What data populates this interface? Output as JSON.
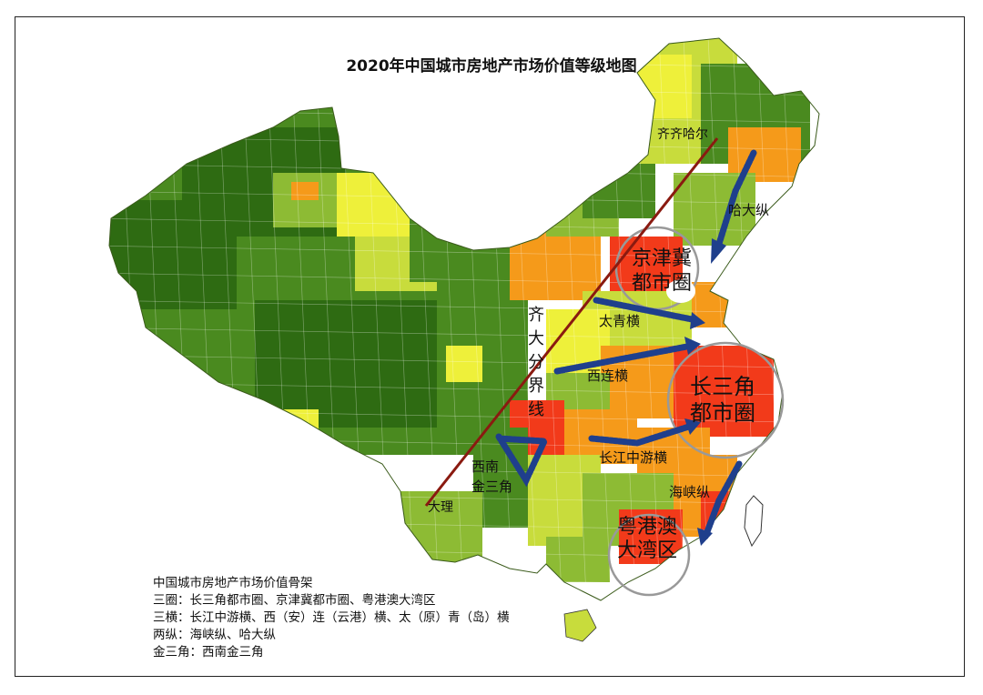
{
  "title": "2020年中国城市房地产市场价值等级地图",
  "labels": {
    "qiqihar": "齐齐哈尔",
    "dali": "大理",
    "boundary": [
      "齐",
      "大",
      "分",
      "界",
      "线"
    ],
    "hada": "哈大纵",
    "taiqing": "太青横",
    "xilian": "西连横",
    "changjiang": "长江中游横",
    "haixia": "海峡纵",
    "jingjinji": [
      "京津冀",
      "都市圈"
    ],
    "changsanjiao": [
      "长三角",
      "都市圈"
    ],
    "yuegangao": [
      "粤港澳",
      "大湾区"
    ],
    "xinan": [
      "西南",
      "金三角"
    ]
  },
  "legend": {
    "heading": "中国城市房地产市场价值骨架",
    "lines": [
      "三圈：长三角都市圈、京津冀都市圈、粤港澳大湾区",
      "三横：长江中游横、西（安）连（云港）横、太（原）青（岛）横",
      "两纵：海峡纵、哈大纵",
      "金三角：西南金三角"
    ]
  },
  "colors": {
    "dark_green": "#2e6b12",
    "green": "#4a8a1f",
    "light_green": "#8dbb34",
    "yellow_green": "#c8dc3c",
    "yellow": "#eef03a",
    "orange": "#f59a1a",
    "red": "#f23a1a",
    "arrow_blue": "#1f3f8c",
    "divide_line": "#8a1a10"
  }
}
